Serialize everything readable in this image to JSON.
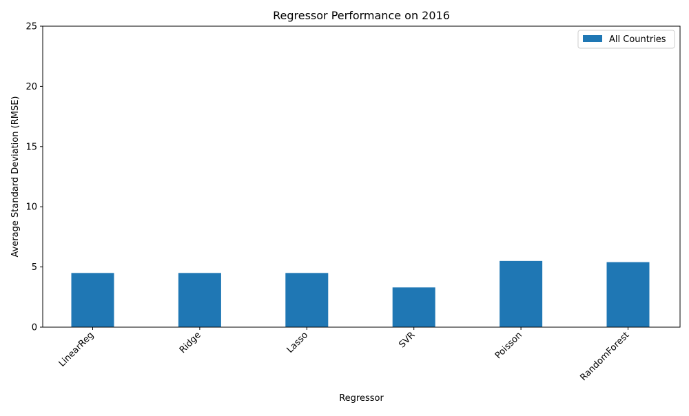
{
  "chart_data": {
    "type": "bar",
    "title": "Regressor Performance on 2016",
    "xlabel": "Regressor",
    "ylabel": "Average Standard Deviation (RMSE)",
    "categories": [
      "LinearReg",
      "Ridge",
      "Lasso",
      "SVR",
      "Poisson",
      "RandomForest"
    ],
    "series": [
      {
        "name": "All Countries",
        "values": [
          4.5,
          4.5,
          4.5,
          3.3,
          5.5,
          5.4
        ],
        "color": "#1f77b4"
      }
    ],
    "ylim": [
      0,
      25
    ],
    "yticks": [
      0,
      5,
      10,
      15,
      20,
      25
    ],
    "grid": false,
    "legend_position": "top-right"
  }
}
